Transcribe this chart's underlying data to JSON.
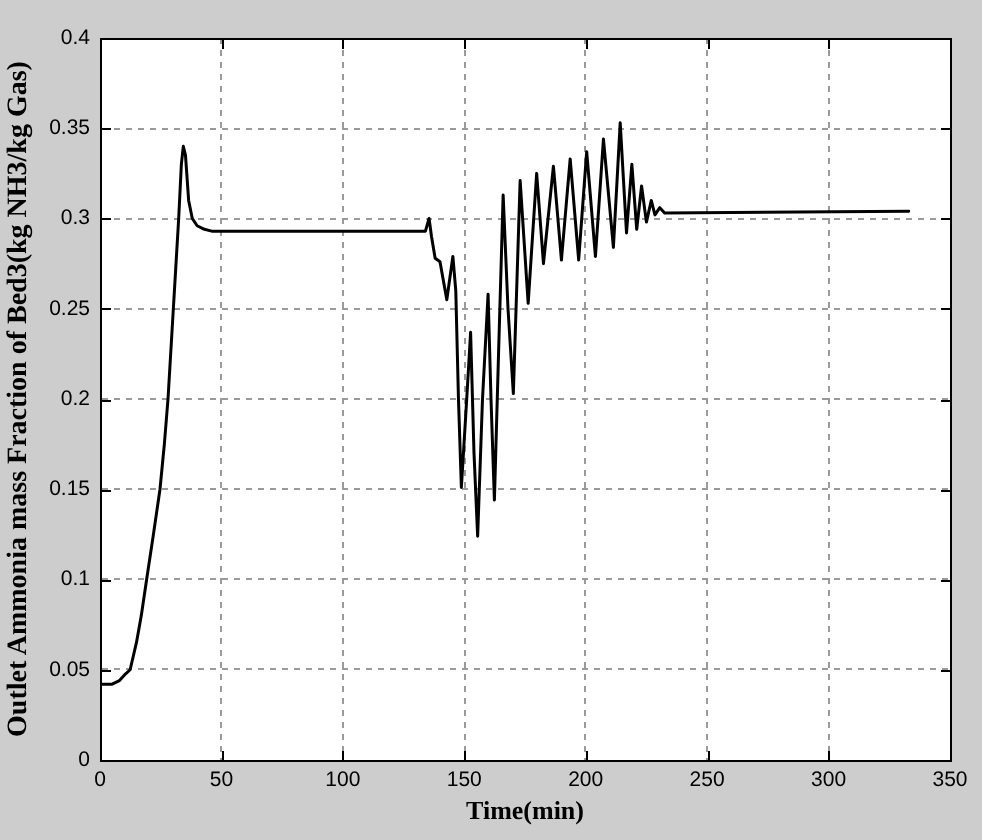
{
  "chart_data": {
    "type": "line",
    "xlabel": "Time(min)",
    "ylabel": "Outlet Ammonia mass Fraction of Bed3(kg NH3/kg Gas)",
    "x": [
      0,
      5,
      8,
      10,
      12.4,
      15,
      17,
      19.2,
      22,
      24.7,
      26.5,
      28,
      30.2,
      32.4,
      33.5,
      34.3,
      35.2,
      36.5,
      38,
      40,
      43,
      46,
      134,
      135.5,
      136.5,
      138,
      140,
      142.8,
      145.3,
      146.5,
      147.6,
      148.8,
      151,
      152.6,
      154,
      155.5,
      157.5,
      159.8,
      161,
      162.4,
      164,
      166,
      168,
      170.2,
      173,
      176.3,
      179.8,
      182.6,
      186.7,
      190,
      193.6,
      197.1,
      200.4,
      204,
      207.3,
      211.4,
      214.2,
      216.8,
      219,
      221,
      223,
      225,
      227,
      228.5,
      230.5,
      232.5,
      333
    ],
    "series": [
      {
        "color": "#000000",
        "values": [
          0.042,
          0.042,
          0.044,
          0.047,
          0.05,
          0.065,
          0.08,
          0.1,
          0.125,
          0.15,
          0.175,
          0.2,
          0.25,
          0.3,
          0.33,
          0.34,
          0.335,
          0.31,
          0.3,
          0.296,
          0.294,
          0.293,
          0.293,
          0.3,
          0.29,
          0.278,
          0.276,
          0.255,
          0.279,
          0.26,
          0.2,
          0.151,
          0.2,
          0.237,
          0.17,
          0.124,
          0.2,
          0.258,
          0.2,
          0.144,
          0.22,
          0.313,
          0.25,
          0.203,
          0.321,
          0.253,
          0.325,
          0.275,
          0.329,
          0.277,
          0.333,
          0.277,
          0.337,
          0.279,
          0.344,
          0.284,
          0.353,
          0.292,
          0.33,
          0.294,
          0.318,
          0.298,
          0.31,
          0.302,
          0.306,
          0.303,
          0.304
        ]
      }
    ],
    "xlim": [
      0,
      350
    ],
    "xticks": [
      0,
      50,
      100,
      150,
      200,
      250,
      300,
      350
    ],
    "ylim": [
      0,
      0.4
    ],
    "yticks": [
      0,
      0.05,
      0.1,
      0.15,
      0.2,
      0.25,
      0.3,
      0.35,
      0.4
    ],
    "grid": true
  }
}
